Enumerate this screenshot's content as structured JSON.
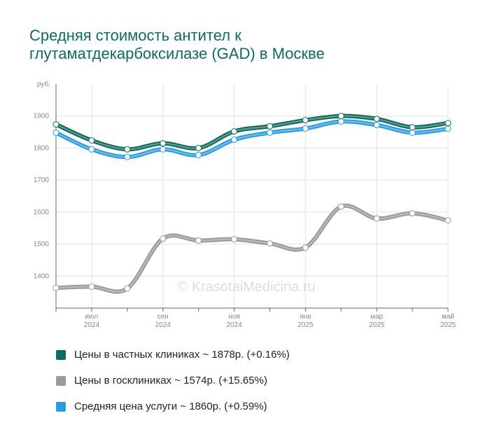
{
  "chart_data": {
    "type": "line",
    "title": "Средняя стоимость антител к глутаматдекарбоксилазе (GAD) в Москве",
    "y_unit": "руб.",
    "watermark": "© KrasotaiMedicina.ru",
    "categories": [
      null,
      {
        "month": "июл",
        "year": "2024"
      },
      null,
      {
        "month": "сен",
        "year": "2024"
      },
      null,
      {
        "month": "ноя",
        "year": "2024"
      },
      null,
      {
        "month": "янв",
        "year": "2025"
      },
      null,
      {
        "month": "мар",
        "year": "2025"
      },
      null,
      {
        "month": "май",
        "year": "2025"
      }
    ],
    "ylim": [
      1300,
      2000
    ],
    "yticks": [
      1400,
      1500,
      1600,
      1700,
      1800,
      1900
    ],
    "grid": true,
    "series": [
      {
        "name": "Цены в госклиниках ~ 1574р. (+15.65%)",
        "color": "#9a9a9a",
        "values": [
          1363,
          1367,
          1361,
          1517,
          1511,
          1515,
          1502,
          1489,
          1617,
          1580,
          1596,
          1574
        ]
      },
      {
        "name": "Средняя цена услуги ~ 1860р. (+0.59%)",
        "color": "#2a9be0",
        "values": [
          1848,
          1796,
          1772,
          1796,
          1778,
          1826,
          1848,
          1861,
          1883,
          1872,
          1848,
          1860
        ]
      },
      {
        "name": "Цены в частных клиниках ~ 1878р. (+0.16%)",
        "color": "#0e6b5e",
        "values": [
          1874,
          1824,
          1796,
          1815,
          1800,
          1852,
          1868,
          1887,
          1900,
          1891,
          1865,
          1878
        ]
      }
    ]
  }
}
